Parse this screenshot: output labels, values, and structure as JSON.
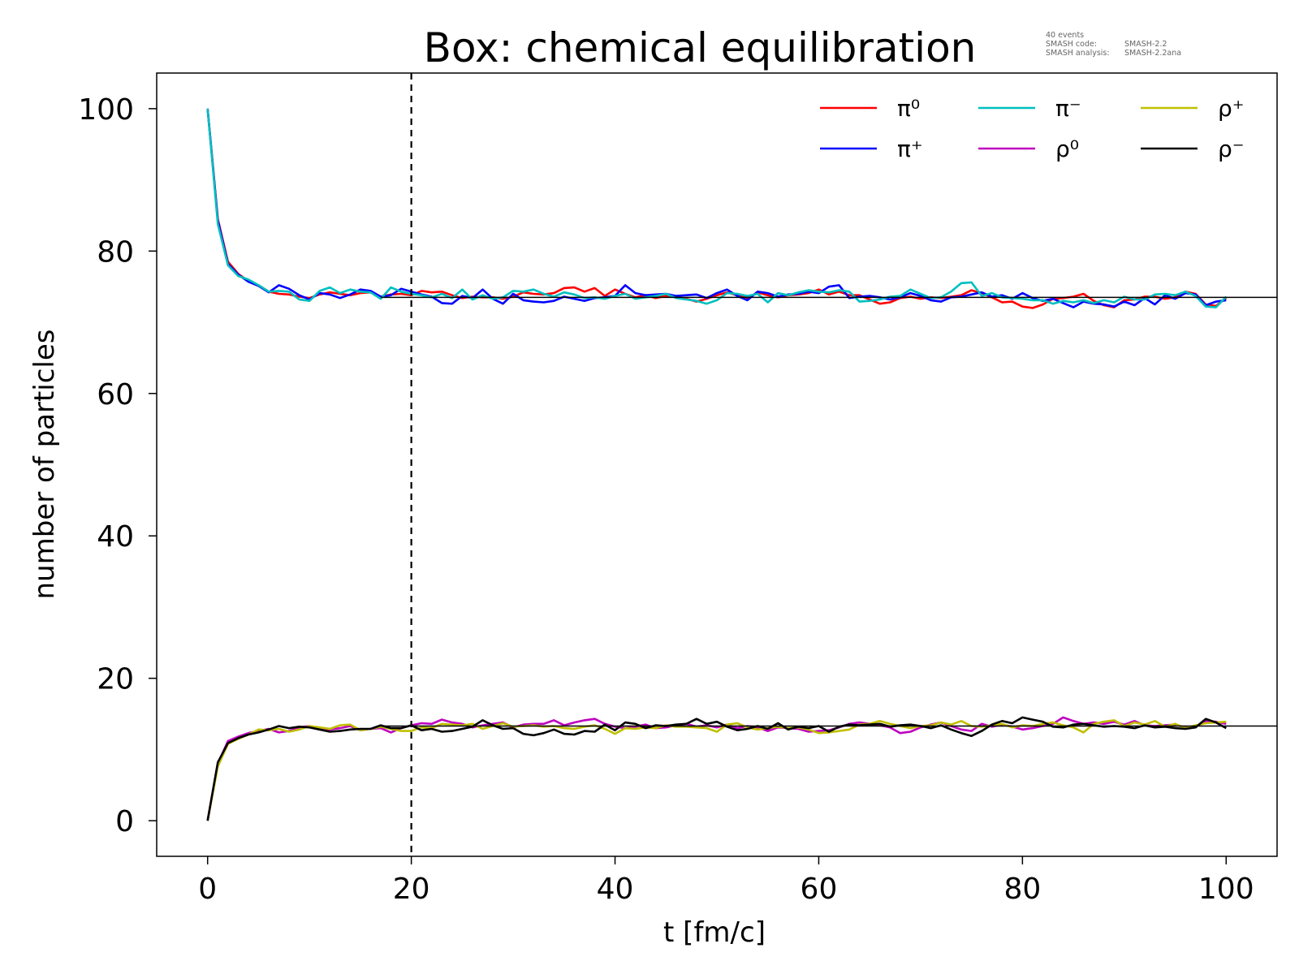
{
  "chart_data": {
    "type": "line",
    "title": "Box: chemical equilibration",
    "info": {
      "events": "40 events",
      "code_label": "SMASH code:",
      "code_value": "SMASH-2.2",
      "analysis_label": "SMASH analysis:",
      "analysis_value": "SMASH-2.2ana"
    },
    "xlabel": "t [fm/c]",
    "ylabel": "number of particles",
    "xlim": [
      -5,
      105
    ],
    "ylim": [
      -5,
      105
    ],
    "xticks": [
      0,
      20,
      40,
      60,
      80,
      100
    ],
    "yticks": [
      0,
      20,
      40,
      60,
      80,
      100
    ],
    "grid": false,
    "legend_position": "top-right",
    "vline": {
      "x": 20,
      "style": "dashed",
      "color": "#000000"
    },
    "equilibrium_lines": [
      {
        "y": 73.5,
        "x_from": 17,
        "x_to": 105,
        "color": "#000000"
      },
      {
        "y": 13.3,
        "x_from": 17,
        "x_to": 105,
        "color": "#000000"
      }
    ],
    "series_defaults": {
      "x": [
        0,
        1,
        2,
        3,
        4,
        5,
        6,
        7,
        8,
        9,
        10,
        11,
        12,
        13,
        14,
        15,
        16,
        17,
        18,
        19,
        20,
        21,
        22,
        23,
        24,
        25,
        26,
        27,
        28,
        29,
        30,
        31,
        32,
        33,
        34,
        35,
        36,
        37,
        38,
        39,
        40,
        41,
        42,
        43,
        44,
        45,
        46,
        47,
        48,
        49,
        50,
        51,
        52,
        53,
        54,
        55,
        56,
        57,
        58,
        59,
        60,
        61,
        62,
        63,
        64,
        65,
        66,
        67,
        68,
        69,
        70,
        71,
        72,
        73,
        74,
        75,
        76,
        77,
        78,
        79,
        80,
        81,
        82,
        83,
        84,
        85,
        86,
        87,
        88,
        89,
        90,
        91,
        92,
        93,
        94,
        95,
        96,
        97,
        98,
        99,
        100
      ]
    },
    "series": [
      {
        "name": "π⁰",
        "color": "#ff0000",
        "values": [
          100,
          84.5,
          78.5,
          76.8,
          75.8,
          75.2,
          74.3,
          74.0,
          73.9,
          73.6,
          73.4,
          73.9,
          74.2,
          74.0,
          73.8,
          74.1,
          74.2,
          73.6,
          73.9,
          74.0,
          73.8,
          74.4,
          74.2,
          74.3,
          73.8,
          73.4,
          73.6,
          73.5,
          73.5,
          73.3,
          73.6,
          74.2,
          74.0,
          73.9,
          74.1,
          74.8,
          74.9,
          74.3,
          74.8,
          73.7,
          74.6,
          74.0,
          73.5,
          73.8,
          73.4,
          73.7,
          73.6,
          73.3,
          72.9,
          73.3,
          73.8,
          74.2,
          73.8,
          73.4,
          74.2,
          73.8,
          73.5,
          73.8,
          73.9,
          74.1,
          74.6,
          73.9,
          74.3,
          73.8,
          73.8,
          73.2,
          72.6,
          72.8,
          73.4,
          73.6,
          73.3,
          73.5,
          73.4,
          73.6,
          73.8,
          74.5,
          74.1,
          73.5,
          72.8,
          72.9,
          72.2,
          72.0,
          72.5,
          73.3,
          73.4,
          73.6,
          74.0,
          73.0,
          72.4,
          72.1,
          73.1,
          73.2,
          73.6,
          73.6,
          73.3,
          73.5,
          74.3,
          74.0,
          72.5,
          72.3,
          73.4
        ]
      },
      {
        "name": "π⁺",
        "color": "#0000ff",
        "values": [
          100,
          84.3,
          78.2,
          76.7,
          75.7,
          75.1,
          74.2,
          75.2,
          74.7,
          73.8,
          73.2,
          74.1,
          73.9,
          73.4,
          73.9,
          74.6,
          74.4,
          73.6,
          73.8,
          74.7,
          74.3,
          73.9,
          73.6,
          72.7,
          72.6,
          73.7,
          73.4,
          74.6,
          73.3,
          72.6,
          74.0,
          73.1,
          72.9,
          72.8,
          73.0,
          73.6,
          73.3,
          73.0,
          73.4,
          73.5,
          73.7,
          75.2,
          74.1,
          73.8,
          73.9,
          74.0,
          73.7,
          73.8,
          73.9,
          73.4,
          74.1,
          74.6,
          73.7,
          73.1,
          74.3,
          74.1,
          73.6,
          73.9,
          74.0,
          74.3,
          74.1,
          75.0,
          75.2,
          73.4,
          73.6,
          73.7,
          73.5,
          73.2,
          73.5,
          74.1,
          73.7,
          73.1,
          72.9,
          73.5,
          73.6,
          73.9,
          74.2,
          73.6,
          73.8,
          73.3,
          74.1,
          73.4,
          73.0,
          73.3,
          72.7,
          72.1,
          72.9,
          72.6,
          72.5,
          72.2,
          72.9,
          72.4,
          73.4,
          72.5,
          73.8,
          73.3,
          74.1,
          73.9,
          72.4,
          72.9,
          73.1
        ]
      },
      {
        "name": "π⁻",
        "color": "#00bfbf",
        "values": [
          100,
          83.8,
          78.0,
          76.5,
          76.0,
          75.2,
          74.3,
          74.4,
          74.3,
          73.2,
          73.0,
          74.4,
          74.9,
          74.1,
          74.6,
          74.3,
          74.2,
          73.3,
          74.9,
          74.3,
          74.0,
          73.8,
          73.5,
          74.0,
          73.4,
          74.6,
          73.2,
          73.8,
          73.3,
          73.5,
          74.4,
          74.3,
          74.6,
          74.0,
          73.6,
          74.2,
          73.9,
          73.4,
          73.5,
          73.3,
          73.7,
          74.0,
          73.3,
          73.5,
          73.7,
          74.0,
          73.4,
          73.2,
          73.0,
          72.6,
          73.1,
          74.1,
          74.0,
          73.7,
          74.0,
          72.8,
          74.1,
          73.8,
          74.2,
          74.5,
          74.3,
          74.2,
          74.5,
          74.3,
          72.9,
          73.0,
          73.2,
          73.6,
          73.7,
          74.6,
          74.0,
          73.4,
          73.5,
          74.3,
          75.5,
          75.6,
          73.7,
          74.1,
          73.5,
          73.4,
          73.3,
          73.1,
          73.1,
          72.6,
          73.0,
          72.8,
          73.1,
          72.7,
          73.1,
          72.8,
          73.6,
          73.2,
          73.2,
          73.9,
          74.0,
          73.8,
          74.3,
          73.7,
          72.2,
          72.1,
          73.6
        ]
      },
      {
        "name": "ρ⁰",
        "color": "#bf00bf",
        "values": [
          0,
          8.0,
          11.2,
          11.8,
          12.3,
          12.6,
          12.9,
          12.4,
          12.6,
          13.1,
          13.3,
          12.9,
          12.8,
          13.0,
          13.3,
          12.7,
          12.9,
          13.0,
          12.4,
          13.0,
          13.4,
          13.7,
          13.6,
          14.2,
          13.8,
          13.6,
          13.1,
          13.4,
          13.6,
          13.8,
          13.1,
          13.5,
          13.6,
          13.6,
          14.1,
          13.4,
          13.8,
          14.1,
          14.3,
          13.6,
          13.2,
          13.0,
          13.2,
          13.5,
          13.0,
          13.1,
          13.4,
          13.6,
          13.2,
          13.4,
          13.1,
          13.5,
          13.0,
          13.3,
          13.1,
          12.6,
          13.1,
          13.0,
          12.9,
          12.5,
          12.6,
          12.7,
          13.1,
          13.6,
          13.8,
          13.6,
          13.4,
          13.1,
          12.3,
          12.5,
          13.1,
          13.5,
          13.8,
          13.3,
          12.8,
          12.6,
          13.6,
          13.2,
          13.5,
          13.2,
          12.8,
          13.0,
          13.3,
          13.6,
          14.5,
          14.0,
          13.6,
          13.8,
          13.6,
          13.9,
          13.5,
          14.0,
          13.4,
          13.3,
          13.4,
          13.5,
          13.1,
          13.2,
          14.0,
          13.9,
          13.6
        ]
      },
      {
        "name": "ρ⁺",
        "color": "#bfbf00",
        "values": [
          0,
          7.6,
          10.8,
          11.5,
          12.1,
          12.8,
          12.7,
          12.9,
          12.5,
          12.8,
          13.3,
          13.1,
          12.9,
          13.4,
          13.5,
          12.7,
          12.9,
          13.2,
          12.9,
          12.6,
          12.6,
          13.1,
          13.0,
          13.6,
          13.5,
          13.4,
          13.6,
          12.9,
          13.3,
          13.7,
          13.2,
          13.3,
          13.4,
          13.2,
          13.3,
          13.0,
          12.9,
          13.2,
          13.4,
          12.9,
          12.2,
          13.0,
          12.9,
          13.1,
          13.0,
          13.4,
          13.2,
          13.2,
          13.1,
          13.0,
          12.5,
          13.5,
          13.7,
          13.1,
          12.8,
          13.0,
          13.2,
          13.0,
          13.1,
          12.8,
          12.3,
          12.4,
          12.6,
          12.8,
          13.5,
          13.6,
          14.0,
          13.6,
          13.3,
          13.0,
          13.3,
          13.4,
          13.8,
          13.5,
          14.0,
          13.3,
          13.2,
          13.4,
          13.6,
          13.1,
          13.4,
          13.3,
          13.6,
          13.8,
          13.4,
          13.1,
          12.4,
          13.6,
          13.9,
          14.1,
          13.3,
          13.8,
          13.5,
          14.0,
          13.2,
          13.6,
          13.0,
          13.4,
          13.7,
          13.8,
          13.9
        ]
      },
      {
        "name": "ρ⁻",
        "color": "#000000",
        "values": [
          0,
          8.2,
          10.9,
          11.6,
          12.1,
          12.4,
          12.8,
          13.3,
          13.0,
          13.2,
          13.1,
          12.8,
          12.5,
          12.6,
          12.8,
          12.9,
          12.9,
          13.4,
          13.0,
          13.0,
          13.4,
          12.7,
          12.9,
          12.5,
          12.6,
          12.9,
          13.2,
          14.1,
          13.4,
          12.9,
          13.0,
          12.2,
          12.0,
          12.3,
          12.8,
          12.2,
          12.1,
          12.6,
          12.5,
          13.5,
          12.7,
          13.8,
          13.6,
          13.0,
          13.4,
          13.3,
          13.5,
          13.6,
          14.3,
          13.6,
          13.9,
          13.2,
          12.7,
          12.9,
          13.3,
          12.9,
          13.7,
          12.8,
          13.2,
          13.0,
          13.3,
          12.5,
          13.2,
          13.5,
          13.4,
          13.5,
          13.6,
          13.2,
          13.4,
          13.5,
          13.3,
          13.0,
          13.4,
          12.8,
          12.3,
          11.9,
          12.6,
          13.5,
          14.0,
          13.7,
          14.5,
          14.2,
          13.9,
          13.2,
          13.1,
          13.5,
          13.6,
          13.4,
          13.2,
          13.3,
          13.2,
          13.0,
          13.4,
          13.1,
          13.2,
          13.0,
          12.9,
          13.1,
          14.3,
          13.8,
          13.0
        ]
      }
    ]
  }
}
